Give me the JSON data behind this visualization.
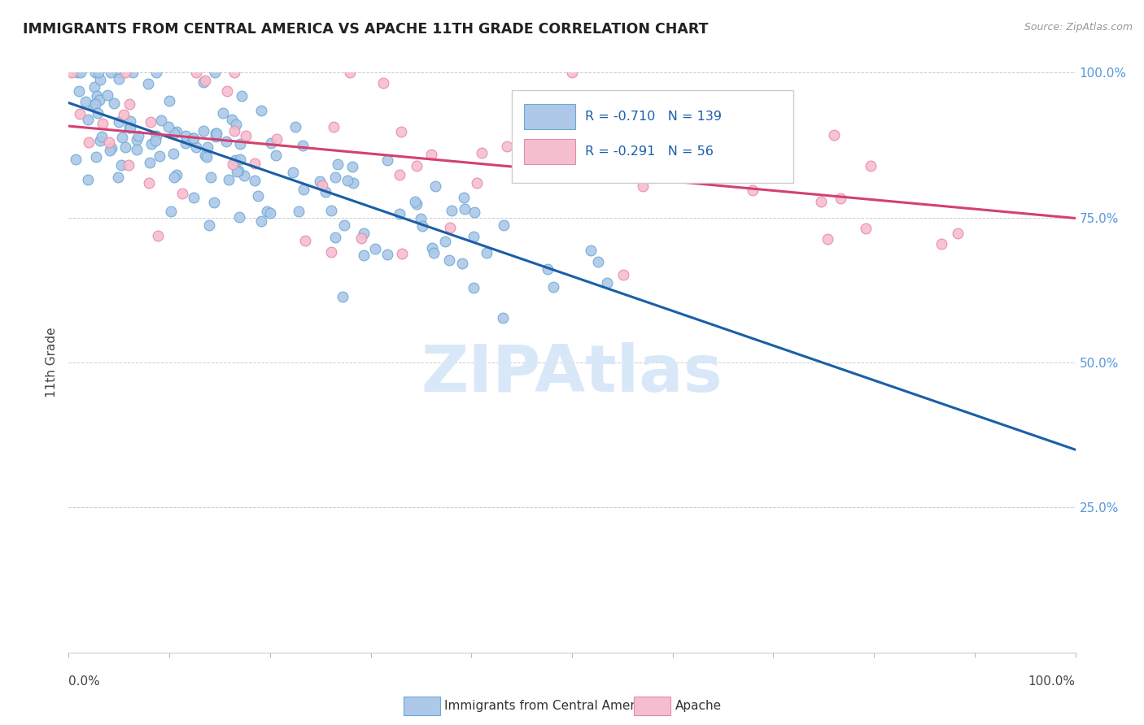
{
  "title": "IMMIGRANTS FROM CENTRAL AMERICA VS APACHE 11TH GRADE CORRELATION CHART",
  "source": "Source: ZipAtlas.com",
  "ylabel": "11th Grade",
  "xlim": [
    0,
    1
  ],
  "ylim": [
    0,
    1
  ],
  "blue_R": -0.71,
  "blue_N": 139,
  "pink_R": -0.291,
  "pink_N": 56,
  "blue_fill_color": "#adc8e8",
  "pink_fill_color": "#f5bece",
  "blue_edge_color": "#6aaad4",
  "pink_edge_color": "#e888a8",
  "blue_line_color": "#1a5fa8",
  "pink_line_color": "#d44070",
  "background_color": "#ffffff",
  "grid_color": "#cccccc",
  "right_tick_color": "#5599dd",
  "watermark_color": "#d8e8f8",
  "legend_text_color": "#1a5fa8",
  "ylabel_color": "#444444",
  "title_color": "#222222",
  "source_color": "#999999",
  "bottom_label_color": "#333333",
  "legend_box_color": "#e8e8e8"
}
